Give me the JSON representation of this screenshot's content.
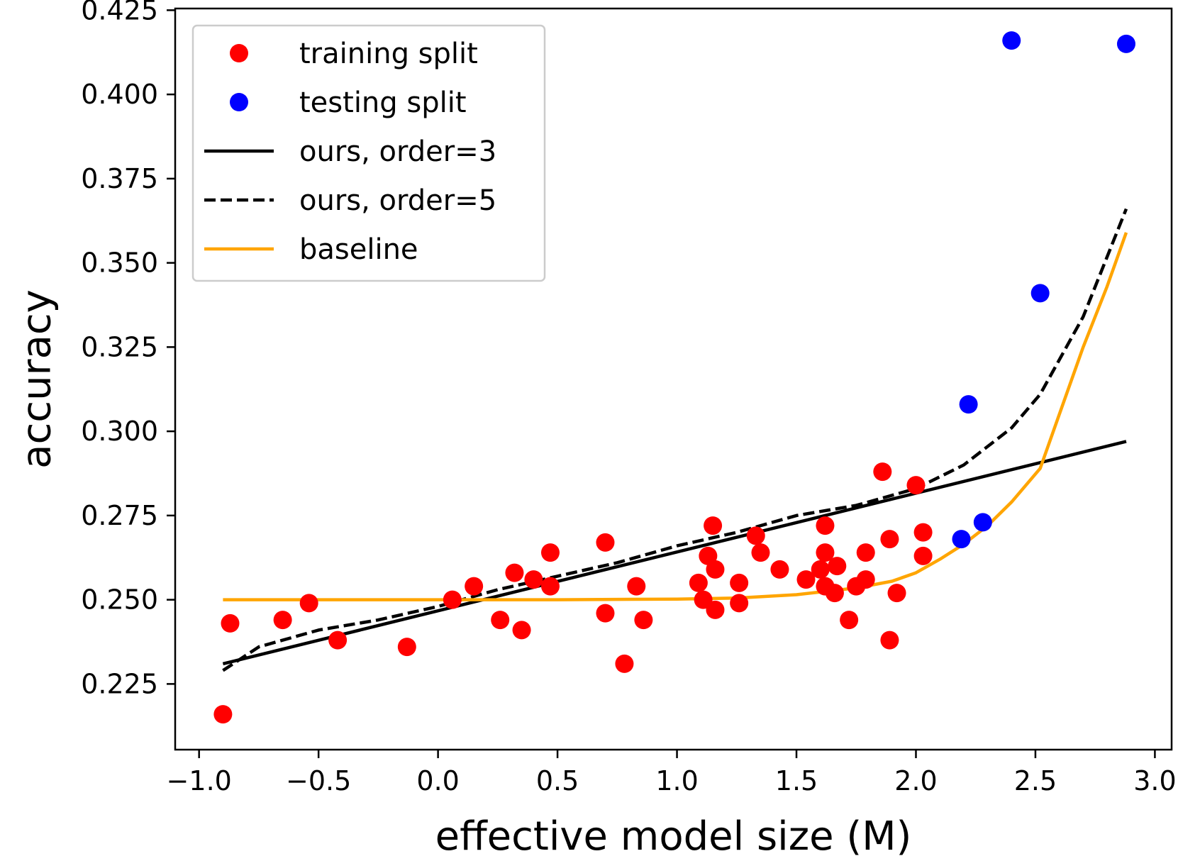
{
  "chart_data": {
    "type": "scatter",
    "title": "",
    "xlabel": "effective model size (M)",
    "ylabel": "accuracy",
    "xlim": [
      -1.1,
      3.07
    ],
    "ylim": [
      0.2055,
      0.4255
    ],
    "xticks": [
      -1.0,
      -0.5,
      0.0,
      0.5,
      1.0,
      1.5,
      2.0,
      2.5,
      3.0
    ],
    "xtick_labels": [
      "−1.0",
      "−0.5",
      "0.0",
      "0.5",
      "1.0",
      "1.5",
      "2.0",
      "2.5",
      "3.0"
    ],
    "yticks": [
      0.225,
      0.25,
      0.275,
      0.3,
      0.325,
      0.35,
      0.375,
      0.4,
      0.425
    ],
    "ytick_labels": [
      "0.225",
      "0.250",
      "0.275",
      "0.300",
      "0.325",
      "0.350",
      "0.375",
      "0.400",
      "0.425"
    ],
    "grid": false,
    "legend_position": "top-left",
    "series": [
      {
        "name": "training split",
        "kind": "scatter",
        "color": "#ff0000",
        "points": [
          [
            -0.9,
            0.216
          ],
          [
            -0.87,
            0.243
          ],
          [
            -0.65,
            0.244
          ],
          [
            -0.54,
            0.249
          ],
          [
            -0.42,
            0.238
          ],
          [
            -0.13,
            0.236
          ],
          [
            0.06,
            0.25
          ],
          [
            0.15,
            0.254
          ],
          [
            0.26,
            0.244
          ],
          [
            0.32,
            0.258
          ],
          [
            0.35,
            0.241
          ],
          [
            0.4,
            0.256
          ],
          [
            0.47,
            0.264
          ],
          [
            0.47,
            0.254
          ],
          [
            0.7,
            0.267
          ],
          [
            0.7,
            0.246
          ],
          [
            0.78,
            0.231
          ],
          [
            0.83,
            0.254
          ],
          [
            0.86,
            0.244
          ],
          [
            1.09,
            0.255
          ],
          [
            1.11,
            0.25
          ],
          [
            1.13,
            0.263
          ],
          [
            1.15,
            0.272
          ],
          [
            1.16,
            0.259
          ],
          [
            1.16,
            0.247
          ],
          [
            1.26,
            0.249
          ],
          [
            1.26,
            0.255
          ],
          [
            1.33,
            0.269
          ],
          [
            1.35,
            0.264
          ],
          [
            1.43,
            0.259
          ],
          [
            1.54,
            0.256
          ],
          [
            1.6,
            0.259
          ],
          [
            1.62,
            0.272
          ],
          [
            1.62,
            0.264
          ],
          [
            1.62,
            0.254
          ],
          [
            1.66,
            0.252
          ],
          [
            1.67,
            0.26
          ],
          [
            1.72,
            0.244
          ],
          [
            1.75,
            0.254
          ],
          [
            1.79,
            0.256
          ],
          [
            1.79,
            0.264
          ],
          [
            1.86,
            0.288
          ],
          [
            1.89,
            0.268
          ],
          [
            1.89,
            0.238
          ],
          [
            1.92,
            0.252
          ],
          [
            2.0,
            0.284
          ],
          [
            2.03,
            0.27
          ],
          [
            2.03,
            0.263
          ]
        ]
      },
      {
        "name": "testing split",
        "kind": "scatter",
        "color": "#0000ff",
        "points": [
          [
            2.19,
            0.268
          ],
          [
            2.22,
            0.308
          ],
          [
            2.28,
            0.273
          ],
          [
            2.4,
            0.416
          ],
          [
            2.52,
            0.341
          ],
          [
            2.88,
            0.415
          ]
        ]
      },
      {
        "name": "ours, order=3",
        "kind": "line",
        "color": "#000000",
        "dash": "solid",
        "points": [
          [
            -0.9,
            0.231
          ],
          [
            2.88,
            0.297
          ]
        ]
      },
      {
        "name": "ours, order=5",
        "kind": "line",
        "color": "#000000",
        "dash": "dashed",
        "points": [
          [
            -0.9,
            0.229
          ],
          [
            -0.75,
            0.236
          ],
          [
            -0.5,
            0.241
          ],
          [
            -0.25,
            0.244
          ],
          [
            0.0,
            0.248
          ],
          [
            0.25,
            0.253
          ],
          [
            0.5,
            0.257
          ],
          [
            0.75,
            0.261
          ],
          [
            1.0,
            0.266
          ],
          [
            1.25,
            0.27
          ],
          [
            1.5,
            0.275
          ],
          [
            1.75,
            0.278
          ],
          [
            2.0,
            0.283
          ],
          [
            2.2,
            0.29
          ],
          [
            2.4,
            0.301
          ],
          [
            2.52,
            0.311
          ],
          [
            2.7,
            0.334
          ],
          [
            2.88,
            0.366
          ]
        ]
      },
      {
        "name": "baseline",
        "kind": "line",
        "color": "#ffa500",
        "dash": "solid",
        "points": [
          [
            -0.9,
            0.25
          ],
          [
            -0.5,
            0.25
          ],
          [
            0.0,
            0.25
          ],
          [
            0.5,
            0.25
          ],
          [
            1.0,
            0.2502
          ],
          [
            1.25,
            0.2505
          ],
          [
            1.5,
            0.2515
          ],
          [
            1.75,
            0.2535
          ],
          [
            1.9,
            0.2555
          ],
          [
            2.0,
            0.258
          ],
          [
            2.1,
            0.262
          ],
          [
            2.2,
            0.2665
          ],
          [
            2.3,
            0.272
          ],
          [
            2.4,
            0.279
          ],
          [
            2.52,
            0.289
          ],
          [
            2.6,
            0.305
          ],
          [
            2.7,
            0.325
          ],
          [
            2.8,
            0.343
          ],
          [
            2.88,
            0.359
          ]
        ]
      }
    ]
  }
}
